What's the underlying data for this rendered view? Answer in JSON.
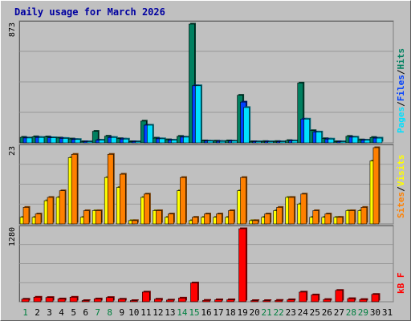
{
  "chart_data": {
    "type": "bar",
    "title": "Daily usage for March 2026",
    "categories": [
      "1",
      "2",
      "3",
      "4",
      "5",
      "6",
      "7",
      "8",
      "9",
      "10",
      "11",
      "12",
      "13",
      "14",
      "15",
      "16",
      "17",
      "18",
      "19",
      "20",
      "21",
      "22",
      "23",
      "24",
      "25",
      "26",
      "27",
      "28",
      "29",
      "30",
      "31"
    ],
    "weekend_days": [
      "1",
      "7",
      "8",
      "14",
      "15",
      "21",
      "22",
      "28",
      "29"
    ],
    "panels": [
      {
        "id": "top",
        "max_label": "873",
        "ymax": 873,
        "axis_label_parts": [
          "Pages",
          "/",
          "Files",
          "/",
          "Hits"
        ],
        "series": [
          {
            "name": "Hits",
            "color": "#008060",
            "values": [
              41,
              45,
              44,
              36,
              29,
              8,
              85,
              49,
              31,
              8,
              160,
              35,
              23,
              48,
              873,
              15,
              13,
              15,
              350,
              8,
              10,
              10,
              17,
              440,
              90,
              31,
              8,
              48,
              22,
              40,
              0
            ]
          },
          {
            "name": "Files",
            "color": "#0040ff",
            "values": [
              36,
              40,
              38,
              33,
              25,
              6,
              20,
              40,
              28,
              6,
              130,
              30,
              20,
              42,
              420,
              13,
              11,
              13,
              300,
              6,
              8,
              8,
              15,
              175,
              80,
              28,
              6,
              42,
              20,
              35,
              0
            ]
          },
          {
            "name": "Pages",
            "color": "#00e0ff",
            "values": [
              36,
              40,
              38,
              33,
              25,
              6,
              20,
              40,
              28,
              6,
              130,
              30,
              20,
              42,
              420,
              13,
              11,
              13,
              260,
              6,
              8,
              8,
              15,
              175,
              80,
              28,
              6,
              42,
              20,
              35,
              0
            ]
          }
        ]
      },
      {
        "id": "middle",
        "max_label": "23",
        "ymax": 23,
        "axis_label_parts": [
          "Sites",
          "/",
          "Visits"
        ],
        "series": [
          {
            "name": "Visits",
            "color": "#ffff00",
            "values": [
              2,
              2,
              7,
              8,
              20,
              2,
              4,
              14,
              11,
              1,
              8,
              4,
              2,
              10,
              1,
              2,
              2,
              2,
              10,
              1,
              2,
              4,
              8,
              6,
              2,
              2,
              2,
              4,
              4,
              19,
              0
            ]
          },
          {
            "name": "Sites",
            "color": "#ff8000",
            "values": [
              5,
              3,
              8,
              10,
              21,
              4,
              4,
              21,
              15,
              1,
              9,
              4,
              3,
              14,
              2,
              3,
              3,
              4,
              14,
              1,
              3,
              5,
              8,
              9,
              4,
              3,
              2,
              4,
              5,
              23,
              0
            ]
          }
        ]
      },
      {
        "id": "bottom",
        "max_label": "1280",
        "ymax": 1280,
        "axis_label_parts": [
          "kB F"
        ],
        "series": [
          {
            "name": "kB F",
            "color": "#ff0000",
            "values": [
              45,
              80,
              75,
              50,
              80,
              15,
              50,
              75,
              45,
              10,
              170,
              45,
              30,
              65,
              330,
              25,
              35,
              35,
              1280,
              15,
              15,
              25,
              35,
              170,
              120,
              40,
              200,
              55,
              40,
              130,
              0
            ]
          }
        ]
      }
    ]
  }
}
